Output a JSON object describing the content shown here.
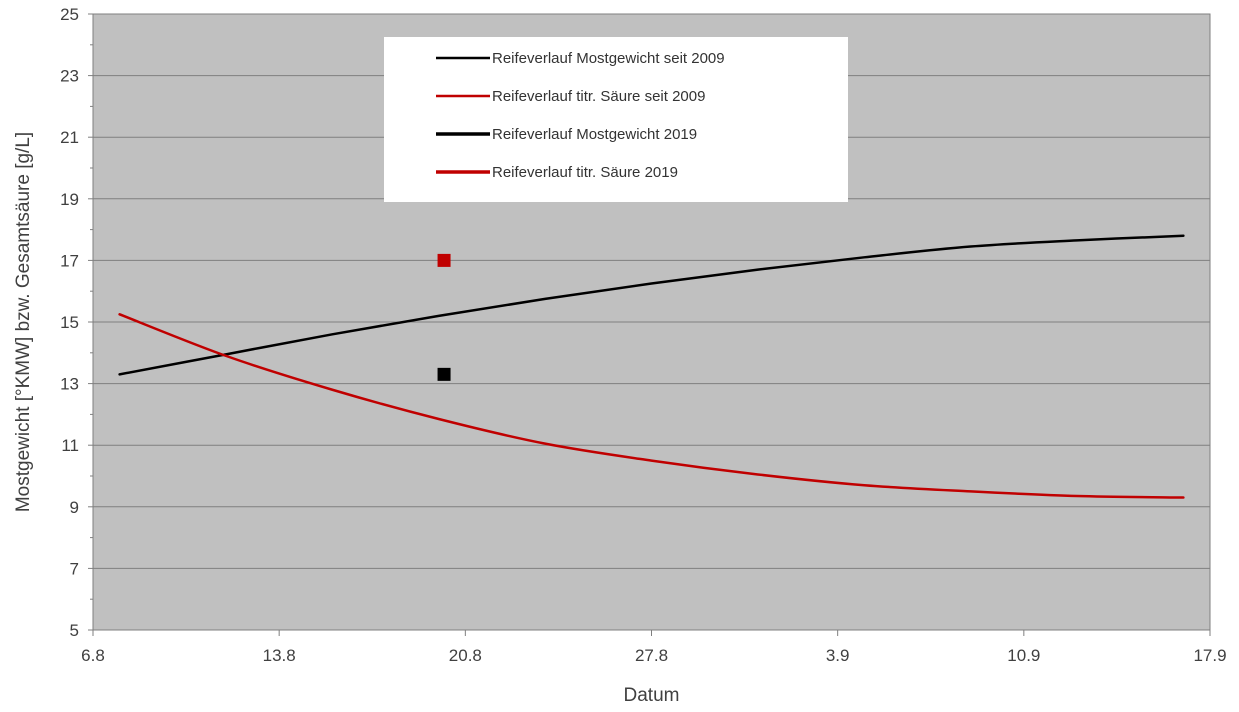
{
  "chart_data": {
    "type": "line",
    "xlabel": "Datum",
    "ylabel": "Mostgewicht [°KMW] bzw. Gesamtsäure [g/L]",
    "x_ticks": [
      "6.8",
      "13.8",
      "20.8",
      "27.8",
      "3.9",
      "10.9",
      "17.9"
    ],
    "xlim": [
      0,
      42
    ],
    "ylim": [
      5,
      25
    ],
    "y_ticks": [
      5,
      7,
      9,
      11,
      13,
      15,
      17,
      19,
      21,
      23,
      25
    ],
    "grid": true,
    "legend_position": "top-center",
    "plot_background": "#c0c0c0",
    "series": [
      {
        "name": "Reifeverlauf Mostgewicht seit 2009",
        "kind": "line",
        "color": "#000000",
        "x": [
          1,
          5,
          9,
          13,
          17,
          21,
          25,
          29,
          33,
          37,
          41
        ],
        "y": [
          13.3,
          13.95,
          14.6,
          15.2,
          15.75,
          16.25,
          16.7,
          17.1,
          17.45,
          17.65,
          17.8
        ]
      },
      {
        "name": "Reifeverlauf titr. Säure seit 2009",
        "kind": "line",
        "color": "#c00000",
        "x": [
          1,
          5,
          9,
          13,
          17,
          21,
          25,
          29,
          33,
          37,
          41
        ],
        "y": [
          15.25,
          13.9,
          12.8,
          11.85,
          11.05,
          10.5,
          10.05,
          9.7,
          9.5,
          9.35,
          9.3
        ]
      },
      {
        "name": "Reifeverlauf Mostgewicht 2019",
        "kind": "marker",
        "color": "#000000",
        "x": [
          13.2
        ],
        "y": [
          13.3
        ]
      },
      {
        "name": "Reifeverlauf titr. Säure 2019",
        "kind": "marker",
        "color": "#c00000",
        "x": [
          13.2
        ],
        "y": [
          17
        ]
      }
    ]
  }
}
